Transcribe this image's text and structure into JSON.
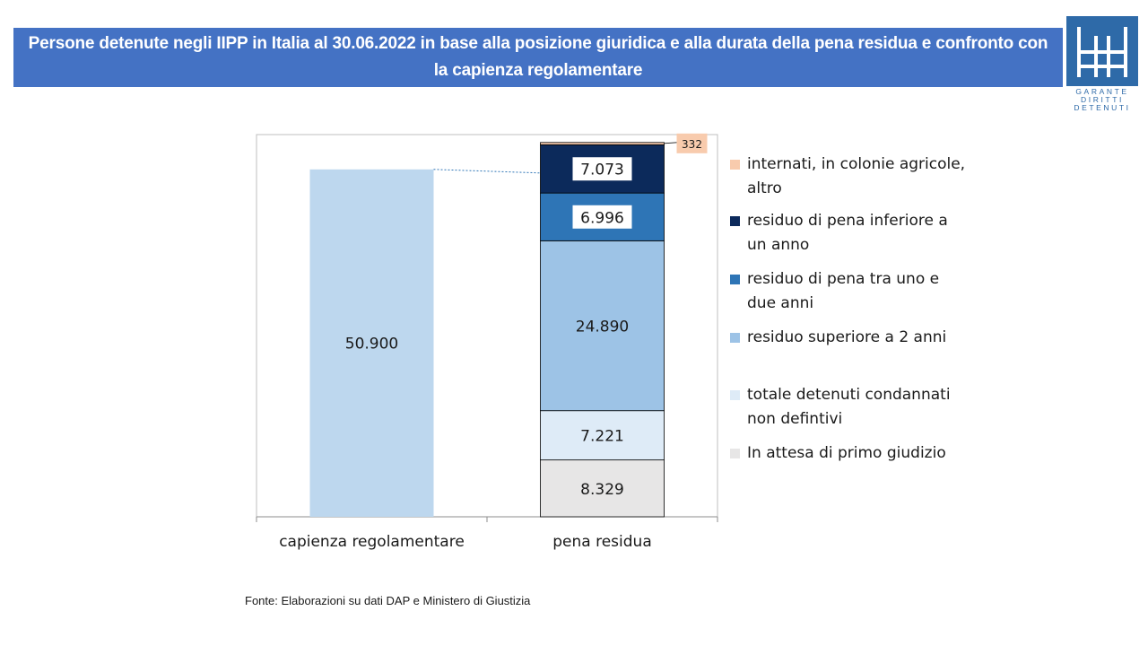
{
  "header": {
    "title": "Persone detenute negli IIPP in Italia al 30.06.2022 in base alla posizione giuridica e alla durata della pena residua e confronto con la capienza regolamentare"
  },
  "logo": {
    "lines": [
      "GARANTE",
      "DIRITTI",
      "DETENUTI"
    ],
    "color": "#2e6aa8"
  },
  "chart_data": {
    "type": "bar",
    "stacked": true,
    "title": "",
    "xlabel": "",
    "ylabel": "",
    "categories": [
      "capienza regolamentare",
      "pena residua"
    ],
    "ylim": [
      0,
      56000
    ],
    "grid": false,
    "legend_placement": "right",
    "series": [
      {
        "name": "In attesa di primo giudizio",
        "values": [
          null,
          8329
        ],
        "labels": [
          null,
          "8.329"
        ],
        "color": "#e7e6e6"
      },
      {
        "name": "totale detenuti condannati non defintivi",
        "values": [
          null,
          7221
        ],
        "labels": [
          null,
          "7.221"
        ],
        "color": "#deebf7"
      },
      {
        "name": "residuo superiore a 2 anni",
        "values": [
          null,
          24890
        ],
        "labels": [
          null,
          "24.890"
        ],
        "color": "#9dc3e6"
      },
      {
        "name": "residuo di pena tra uno e due anni",
        "values": [
          null,
          6996
        ],
        "labels": [
          null,
          "6.996"
        ],
        "color": "#2e75b6"
      },
      {
        "name": "residuo di pena inferiore a un anno",
        "values": [
          null,
          7073
        ],
        "labels": [
          null,
          "7.073"
        ],
        "color": "#0c2a5b"
      },
      {
        "name": "internati, in colonie agricole, altro",
        "values": [
          null,
          332
        ],
        "labels": [
          null,
          "332"
        ],
        "color": "#f8cbad"
      }
    ],
    "capacity": {
      "category": "capienza regolamentare",
      "value": 50900,
      "label": "50.900",
      "color": "#bdd7ee"
    },
    "legend_order": [
      {
        "lines": [
          "internati, in colonie agricole,",
          "altro"
        ],
        "color": "#f8cbad"
      },
      {
        "lines": [
          "residuo di pena inferiore a",
          "un anno"
        ],
        "color": "#0c2a5b"
      },
      {
        "lines": [
          "residuo di pena tra uno e",
          "due anni"
        ],
        "color": "#2e75b6"
      },
      {
        "lines": [
          "residuo superiore a 2 anni"
        ],
        "color": "#9dc3e6"
      },
      {
        "lines": [
          "totale detenuti condannati",
          "non defintivi"
        ],
        "color": "#deebf7"
      },
      {
        "lines": [
          "In attesa di primo giudizio"
        ],
        "color": "#e7e6e6"
      }
    ]
  },
  "footer": {
    "source": "Fonte: Elaborazioni su dati DAP e Ministero di Giustizia"
  }
}
